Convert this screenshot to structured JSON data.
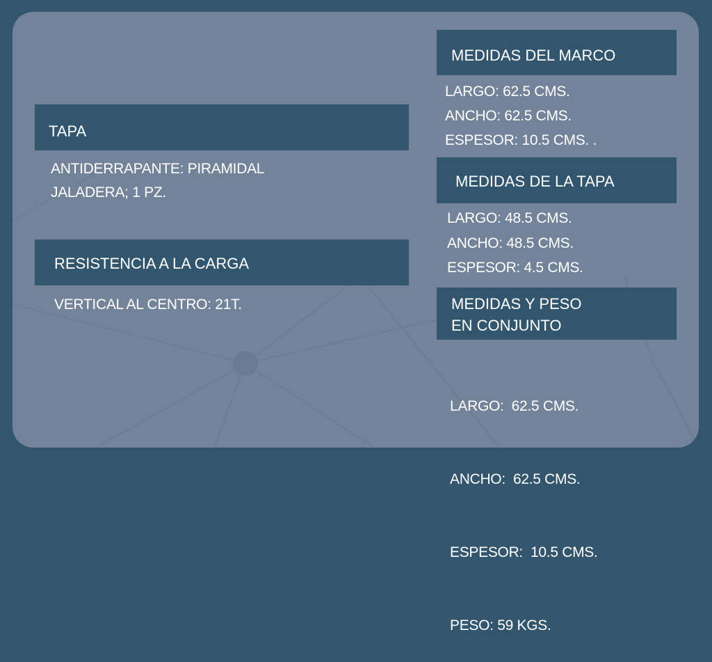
{
  "colors": {
    "background": "#33566f",
    "card": "#73849a",
    "header": "#33566f",
    "text": "#ffffff"
  },
  "tapa": {
    "title": "TAPA",
    "lines": [
      "ANTIDERRAPANTE: PIRAMIDAL",
      "JALADERA; 1 PZ."
    ]
  },
  "resistencia": {
    "title": "RESISTENCIA A LA CARGA",
    "lines": [
      "VERTICAL AL CENTRO: 21T."
    ]
  },
  "marco": {
    "title": "MEDIDAS DEL MARCO",
    "lines": [
      "LARGO: 62.5 CMS.",
      "ANCHO: 62.5 CMS.",
      "ESPESOR: 10.5 CMS. ."
    ]
  },
  "medidas_tapa": {
    "title": "MEDIDAS DE LA TAPA",
    "lines": [
      "LARGO: 48.5 CMS.",
      "ANCHO: 48.5 CMS.",
      "ESPESOR: 4.5 CMS."
    ]
  },
  "conjunto": {
    "title_lines": [
      "MEDIDAS Y PESO",
      "EN CONJUNTO"
    ],
    "lines": [
      "LARGO:  62.5 CMS.",
      "ANCHO:  62.5 CMS.",
      "ESPESOR:  10.5 CMS.",
      "PESO: 59 KGS."
    ]
  }
}
